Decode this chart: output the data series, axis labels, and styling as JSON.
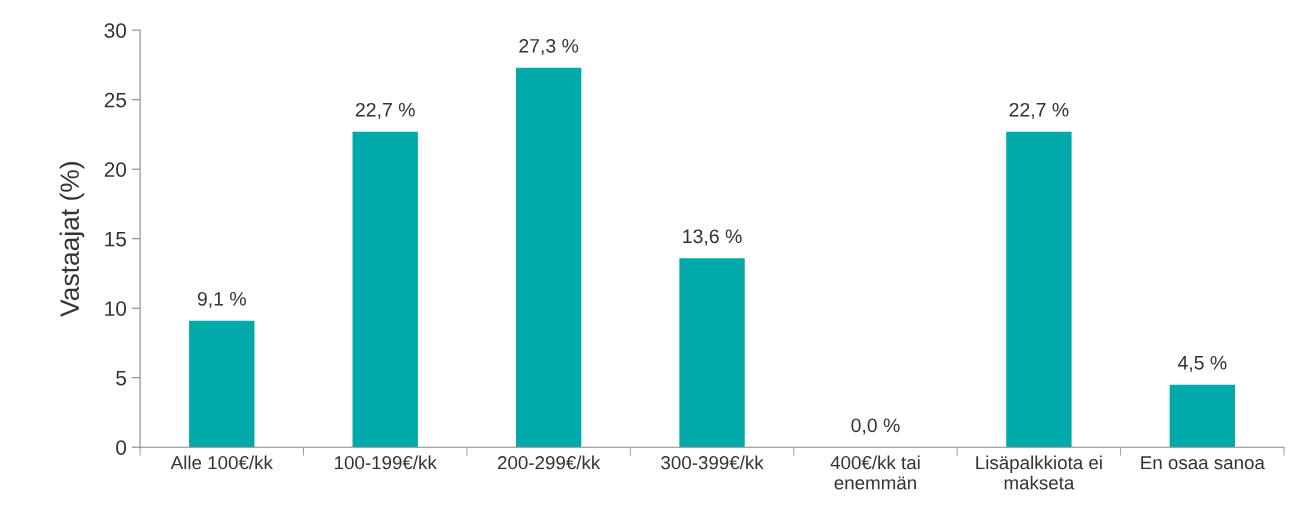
{
  "chart_data": {
    "type": "bar",
    "ylabel": "Vastaajat (%)",
    "categories": [
      "Alle 100€/kk",
      "100-199€/kk",
      "200-299€/kk",
      "300-399€/kk",
      "400€/kk tai\nenemmän",
      "Lisäpalkkiota ei\nmakseta",
      "En osaa sanoa"
    ],
    "values": [
      9.1,
      22.7,
      27.3,
      13.6,
      0.0,
      22.7,
      4.5
    ],
    "value_labels": [
      "9,1 %",
      "22,7 %",
      "27,3 %",
      "13,6 %",
      "0,0 %",
      "22,7 %",
      "4,5 %"
    ],
    "color": "#00aaaa",
    "ylim": [
      0,
      30
    ],
    "yticks": [
      0,
      5,
      10,
      15,
      20,
      25,
      30
    ],
    "grid": false
  }
}
